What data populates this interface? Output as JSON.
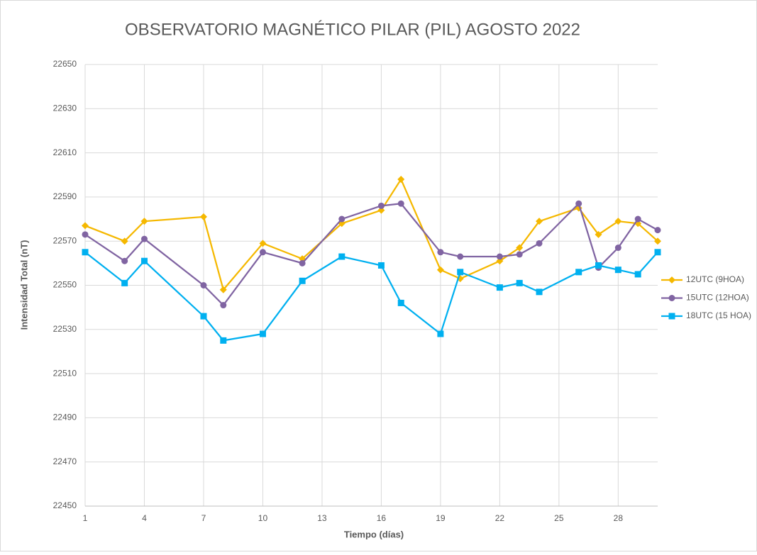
{
  "chart_data": {
    "type": "line",
    "title": "OBSERVATORIO MAGNÉTICO PILAR (PIL) AGOSTO 2022",
    "x_label": "Tiempo (días)",
    "y_label": "Intensidad Total (nT)",
    "xlim": [
      1,
      30
    ],
    "xticks": [
      1,
      4,
      7,
      10,
      13,
      16,
      19,
      22,
      25,
      28
    ],
    "ylim": [
      22450,
      22650
    ],
    "yticks": [
      22450,
      22470,
      22490,
      22510,
      22530,
      22550,
      22570,
      22590,
      22610,
      22630,
      22650
    ],
    "grid": true,
    "legend": "right",
    "x": [
      1,
      3,
      4,
      7,
      8,
      10,
      12,
      14,
      16,
      17,
      19,
      20,
      22,
      23,
      24,
      26,
      27,
      28,
      29,
      30
    ],
    "series": [
      {
        "name": "12UTC (9HOA)",
        "color": "#f5b800",
        "marker": "diamond",
        "values": [
          22577,
          22570,
          22579,
          22581,
          22548,
          22569,
          22562,
          22578,
          22584,
          22598,
          22557,
          22553,
          22561,
          22567,
          22579,
          22585,
          22573,
          22579,
          22578,
          22570
        ]
      },
      {
        "name": "15UTC (12HOA)",
        "color": "#8064a2",
        "marker": "circle",
        "values": [
          22573,
          22561,
          22571,
          22550,
          22541,
          22565,
          22560,
          22580,
          22586,
          22587,
          22565,
          22563,
          22563,
          22564,
          22569,
          22587,
          22558,
          22567,
          22580,
          22575
        ]
      },
      {
        "name": "18UTC (15 HOA)",
        "color": "#00b0f0",
        "marker": "square",
        "values": [
          22565,
          22551,
          22561,
          22536,
          22525,
          22528,
          22552,
          22563,
          22559,
          22542,
          22528,
          22556,
          22549,
          22551,
          22547,
          22556,
          22559,
          22557,
          22555,
          22565
        ]
      }
    ]
  }
}
